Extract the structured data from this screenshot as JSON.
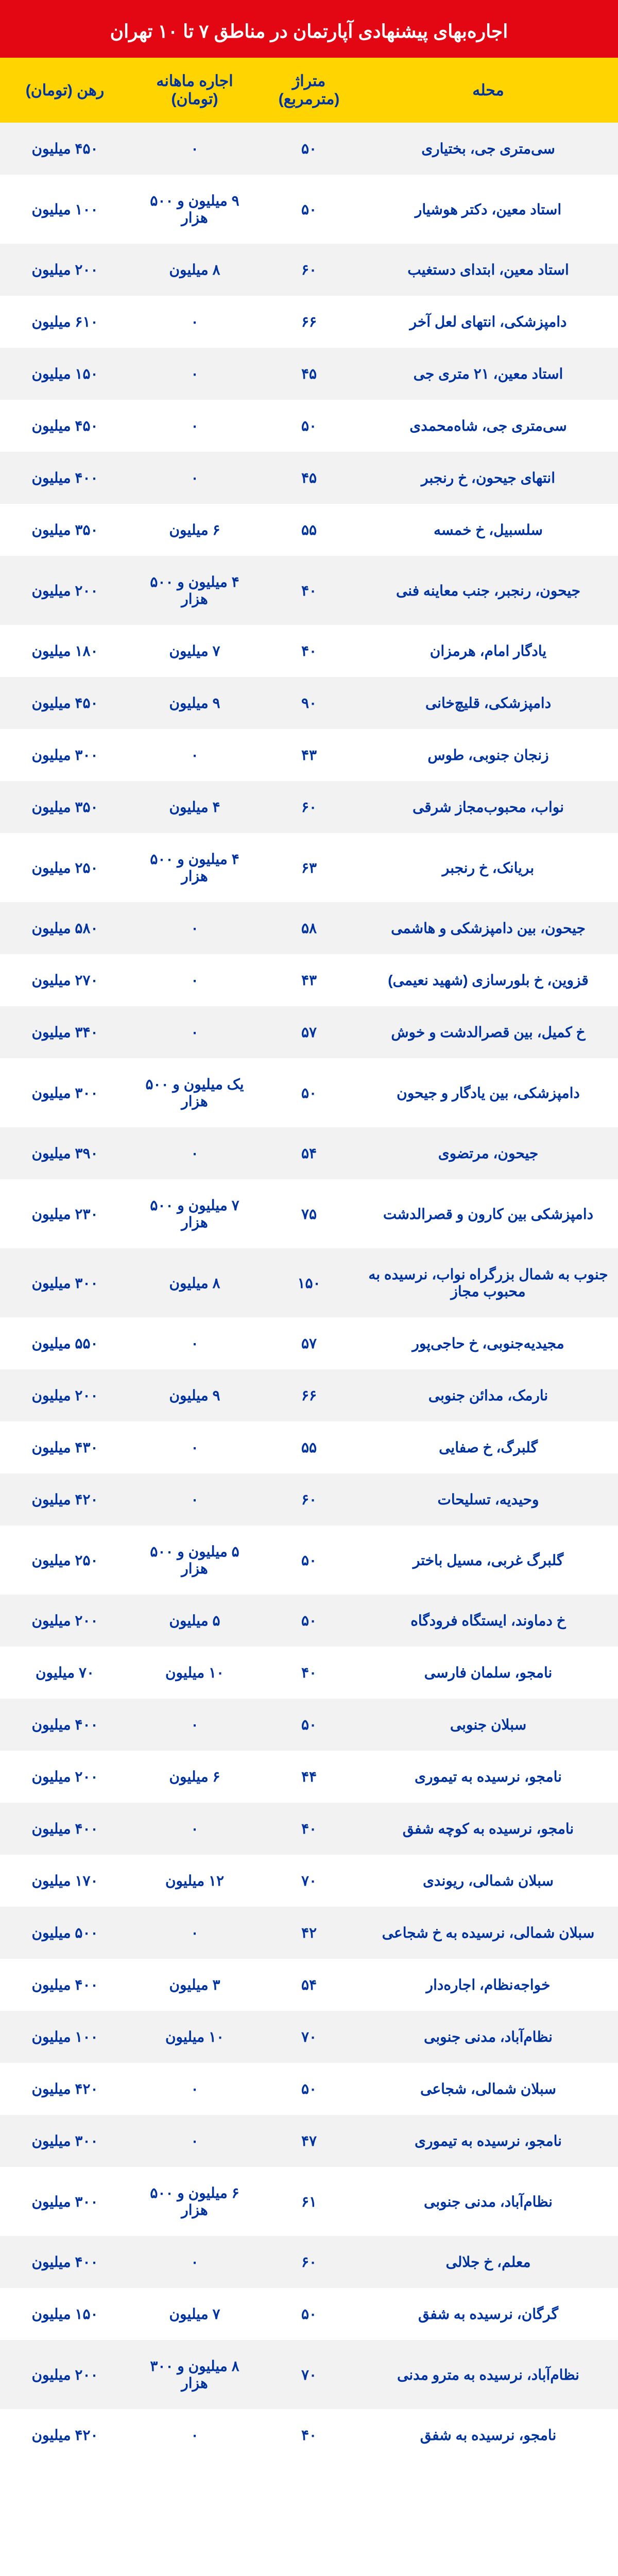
{
  "title": "اجاره‌بهای پیشنهادی آپارتمان در مناطق ۷ تا ۱۰ تهران",
  "headers": {
    "neighborhood": "محله",
    "area": "متراژ (مترمربع)",
    "rent": "اجاره ماهانه (تومان)",
    "deposit": "رهن (تومان)"
  },
  "colors": {
    "page_bg": "#e30613",
    "header_bg": "#ffd400",
    "text_color": "#0033a0",
    "row_odd": "#f2f2f2",
    "row_even": "#ffffff",
    "title_color": "#ffffff"
  },
  "rows": [
    {
      "neighborhood": "سی‌متری جی، بختیاری",
      "area": "۵۰",
      "rent": "۰",
      "deposit": "۴۵۰ میلیون"
    },
    {
      "neighborhood": "استاد معین، دکتر هوشیار",
      "area": "۵۰",
      "rent": "۹ میلیون و ۵۰۰ هزار",
      "deposit": "۱۰۰ میلیون"
    },
    {
      "neighborhood": "استاد معین، ابتدای دستغیب",
      "area": "۶۰",
      "rent": "۸ میلیون",
      "deposit": "۲۰۰ میلیون"
    },
    {
      "neighborhood": "دامپزشکی، انتهای لعل آخر",
      "area": "۶۶",
      "rent": "۰",
      "deposit": "۶۱۰ میلیون"
    },
    {
      "neighborhood": "استاد معین، ۲۱ متری جی",
      "area": "۴۵",
      "rent": "۰",
      "deposit": "۱۵۰ میلیون"
    },
    {
      "neighborhood": "سی‌متری جی، شاه‌محمدی",
      "area": "۵۰",
      "rent": "۰",
      "deposit": "۴۵۰ میلیون"
    },
    {
      "neighborhood": "انتهای جیحون، خ رنجبر",
      "area": "۴۵",
      "rent": "۰",
      "deposit": "۴۰۰ میلیون"
    },
    {
      "neighborhood": "سلسبیل، خ خمسه",
      "area": "۵۵",
      "rent": "۶ میلیون",
      "deposit": "۳۵۰ میلیون"
    },
    {
      "neighborhood": "جیحون، رنجبر، جنب معاینه فنی",
      "area": "۴۰",
      "rent": "۴ میلیون و ۵۰۰ هزار",
      "deposit": "۲۰۰ میلیون"
    },
    {
      "neighborhood": "یادگار امام، هرمزان",
      "area": "۴۰",
      "rent": "۷ میلیون",
      "deposit": "۱۸۰ میلیون"
    },
    {
      "neighborhood": "دامپزشکی، قلیچ‌خانی",
      "area": "۹۰",
      "rent": "۹ میلیون",
      "deposit": "۴۵۰ میلیون"
    },
    {
      "neighborhood": "زنجان جنوبی، طوس",
      "area": "۴۳",
      "rent": "۰",
      "deposit": "۳۰۰ میلیون"
    },
    {
      "neighborhood": "نواب، محبوب‌مجاز شرقی",
      "area": "۶۰",
      "rent": "۴ میلیون",
      "deposit": "۳۵۰ میلیون"
    },
    {
      "neighborhood": "بریانک، خ رنجبر",
      "area": "۶۳",
      "rent": "۴ میلیون و ۵۰۰ هزار",
      "deposit": "۲۵۰ میلیون"
    },
    {
      "neighborhood": "جیحون، بین دامپزشکی و هاشمی",
      "area": "۵۸",
      "rent": "۰",
      "deposit": "۵۸۰ میلیون"
    },
    {
      "neighborhood": "قزوین، خ بلورسازی (شهید نعیمی)",
      "area": "۴۳",
      "rent": "۰",
      "deposit": "۲۷۰ میلیون"
    },
    {
      "neighborhood": "خ کمیل، بین قصرالدشت و خوش",
      "area": "۵۷",
      "rent": "۰",
      "deposit": "۳۴۰ میلیون"
    },
    {
      "neighborhood": "دامپزشکی، بین یادگار و جیحون",
      "area": "۵۰",
      "rent": "یک میلیون و ۵۰۰ هزار",
      "deposit": "۳۰۰ میلیون"
    },
    {
      "neighborhood": "جیحون، مرتضوی",
      "area": "۵۴",
      "rent": "۰",
      "deposit": "۳۹۰ میلیون"
    },
    {
      "neighborhood": "دامپزشکی بین کارون و قصرالدشت",
      "area": "۷۵",
      "rent": "۷ میلیون و ۵۰۰ هزار",
      "deposit": "۲۳۰ میلیون"
    },
    {
      "neighborhood": "جنوب به شمال بزرگراه نواب، نرسیده به محبوب مجاز",
      "area": "۱۵۰",
      "rent": "۸ میلیون",
      "deposit": "۳۰۰ میلیون"
    },
    {
      "neighborhood": "مجیدیه‌جنوبی، خ حاجی‌پور",
      "area": "۵۷",
      "rent": "۰",
      "deposit": "۵۵۰ میلیون"
    },
    {
      "neighborhood": "نارمک، مدائن جنوبی",
      "area": "۶۶",
      "rent": "۹ میلیون",
      "deposit": "۲۰۰ میلیون"
    },
    {
      "neighborhood": "گلبرگ، خ صفایی",
      "area": "۵۵",
      "rent": "۰",
      "deposit": "۴۳۰ میلیون"
    },
    {
      "neighborhood": "وحیدیه، تسلیحات",
      "area": "۶۰",
      "rent": "۰",
      "deposit": "۴۲۰ میلیون"
    },
    {
      "neighborhood": "گلبرگ غربی، مسیل باختر",
      "area": "۵۰",
      "rent": "۵ میلیون و ۵۰۰ هزار",
      "deposit": "۲۵۰ میلیون"
    },
    {
      "neighborhood": "خ دماوند، ایستگاه فرودگاه",
      "area": "۵۰",
      "rent": "۵ میلیون",
      "deposit": "۲۰۰ میلیون"
    },
    {
      "neighborhood": "نامجو، سلمان فارسی",
      "area": "۴۰",
      "rent": "۱۰ میلیون",
      "deposit": "۷۰ میلیون"
    },
    {
      "neighborhood": "سبلان جنوبی",
      "area": "۵۰",
      "rent": "۰",
      "deposit": "۴۰۰ میلیون"
    },
    {
      "neighborhood": "نامجو، نرسیده به تیموری",
      "area": "۴۴",
      "rent": "۶ میلیون",
      "deposit": "۲۰۰ میلیون"
    },
    {
      "neighborhood": "نامجو، نرسیده به کوچه شفق",
      "area": "۴۰",
      "rent": "۰",
      "deposit": "۴۰۰ میلیون"
    },
    {
      "neighborhood": "سبلان شمالی، ریوندی",
      "area": "۷۰",
      "rent": "۱۲ میلیون",
      "deposit": "۱۷۰ میلیون"
    },
    {
      "neighborhood": "سبلان شمالی، نرسیده به خ شجاعی",
      "area": "۴۲",
      "rent": "۰",
      "deposit": "۵۰۰ میلیون"
    },
    {
      "neighborhood": "خواجه‌نظام، اجاره‌دار",
      "area": "۵۴",
      "rent": "۳ میلیون",
      "deposit": "۴۰۰ میلیون"
    },
    {
      "neighborhood": "نظام‌آباد، مدنی جنوبی",
      "area": "۷۰",
      "rent": "۱۰ میلیون",
      "deposit": "۱۰۰ میلیون"
    },
    {
      "neighborhood": "سبلان شمالی، شجاعی",
      "area": "۵۰",
      "rent": "۰",
      "deposit": "۴۲۰ میلیون"
    },
    {
      "neighborhood": "نامجو، نرسیده به تیموری",
      "area": "۴۷",
      "rent": "۰",
      "deposit": "۳۰۰ میلیون"
    },
    {
      "neighborhood": "نظام‌آباد، مدنی جنوبی",
      "area": "۶۱",
      "rent": "۶ میلیون و ۵۰۰ هزار",
      "deposit": "۳۰۰ میلیون"
    },
    {
      "neighborhood": "معلم، خ جلالی",
      "area": "۶۰",
      "rent": "۰",
      "deposit": "۴۰۰ میلیون"
    },
    {
      "neighborhood": "گرگان، نرسیده به شفق",
      "area": "۵۰",
      "rent": "۷ میلیون",
      "deposit": "۱۵۰ میلیون"
    },
    {
      "neighborhood": "نظام‌آباد، نرسیده به مترو مدنی",
      "area": "۷۰",
      "rent": "۸ میلیون و ۳۰۰ هزار",
      "deposit": "۲۰۰ میلیون"
    },
    {
      "neighborhood": "نامجو، نرسیده به شفق",
      "area": "۴۰",
      "rent": "۰",
      "deposit": "۴۲۰ میلیون"
    }
  ]
}
